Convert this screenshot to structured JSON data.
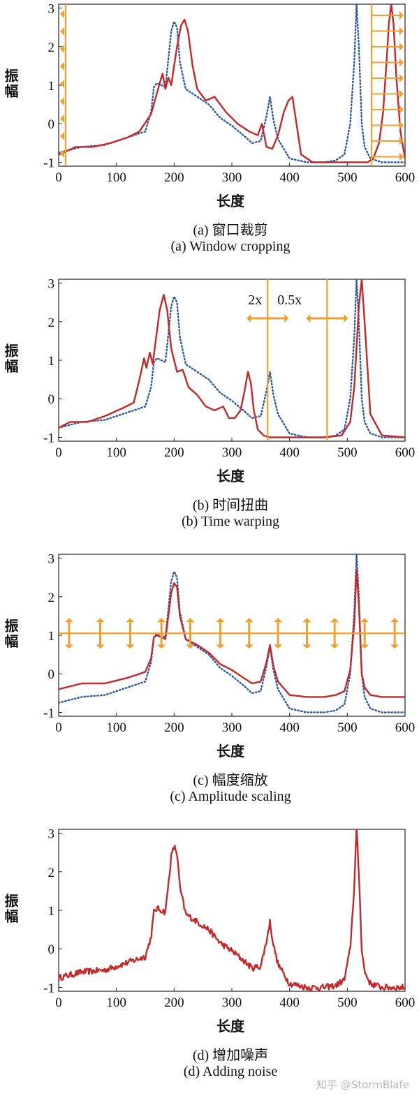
{
  "panels": [
    {
      "caption_letter": "(a)",
      "caption_zh": "窗口裁剪",
      "caption_en": "(a) Window cropping"
    },
    {
      "caption_letter": "(b)",
      "caption_zh": "时间扭曲",
      "caption_en": "(b) Time warping",
      "annotation_left": "2x",
      "annotation_right": "0.5x"
    },
    {
      "caption_letter": "(c)",
      "caption_zh": "幅度缩放",
      "caption_en": "(c) Amplitude scaling"
    },
    {
      "caption_letter": "(d)",
      "caption_zh": "增加噪声",
      "caption_en": "(d) Adding noise"
    }
  ],
  "watermark": "知乎 @StormBlafe",
  "colors": {
    "augmented": "#c62828",
    "original": "#2a57a8",
    "marker": "#f0a030"
  },
  "chart_data": [
    {
      "type": "line",
      "xlabel": "长度",
      "ylabel": "振幅",
      "xlim": [
        0,
        600
      ],
      "ylim": [
        -1.1,
        3.1
      ],
      "xticks": [
        0,
        100,
        200,
        300,
        400,
        500,
        600
      ],
      "yticks": [
        -1,
        0,
        1,
        2,
        3
      ],
      "series": [
        {
          "style": "dotted",
          "color": "#2a57a8",
          "x": [
            0,
            40,
            80,
            120,
            150,
            160,
            165,
            170,
            178,
            185,
            195,
            200,
            205,
            210,
            220,
            240,
            260,
            280,
            300,
            320,
            335,
            350,
            360,
            366,
            372,
            380,
            400,
            430,
            460,
            480,
            495,
            505,
            512,
            516,
            520,
            525,
            530,
            540,
            560,
            600
          ],
          "y": [
            -0.75,
            -0.6,
            -0.55,
            -0.35,
            -0.2,
            0.3,
            0.95,
            1.05,
            1.0,
            0.95,
            2.4,
            2.65,
            2.5,
            1.6,
            0.9,
            0.7,
            0.5,
            0.15,
            -0.05,
            -0.3,
            -0.5,
            -0.45,
            0.2,
            0.7,
            0.1,
            -0.4,
            -0.9,
            -1.0,
            -1.0,
            -0.95,
            -0.8,
            0.0,
            1.6,
            3.1,
            2.0,
            0.0,
            -0.6,
            -0.9,
            -1.0,
            -1.0
          ]
        },
        {
          "style": "solid",
          "color": "#c62828",
          "x": [
            0,
            30,
            60,
            90,
            120,
            140,
            160,
            175,
            180,
            185,
            190,
            195,
            200,
            205,
            212,
            218,
            224,
            232,
            240,
            255,
            270,
            290,
            310,
            330,
            345,
            352,
            360,
            370,
            380,
            390,
            398,
            405,
            410,
            420,
            440,
            470,
            500,
            520,
            535,
            545,
            555,
            562,
            568,
            572,
            576,
            580,
            585,
            592,
            600
          ],
          "y": [
            -0.8,
            -0.6,
            -0.6,
            -0.5,
            -0.35,
            -0.2,
            0.25,
            1.05,
            1.3,
            0.9,
            1.2,
            1.0,
            1.5,
            2.0,
            2.55,
            2.7,
            2.4,
            1.5,
            0.9,
            0.6,
            0.7,
            0.3,
            0.0,
            -0.2,
            -0.3,
            0.0,
            -0.6,
            -0.65,
            -0.3,
            0.3,
            0.6,
            0.7,
            0.2,
            -0.8,
            -1.0,
            -1.0,
            -1.0,
            -1.0,
            -1.0,
            -0.9,
            -0.5,
            0.3,
            1.6,
            2.6,
            3.1,
            2.6,
            1.2,
            -0.2,
            -0.9
          ]
        }
      ]
    },
    {
      "type": "line",
      "xlabel": "长度",
      "ylabel": "振幅",
      "xlim": [
        0,
        600
      ],
      "ylim": [
        -1.1,
        3.1
      ],
      "xticks": [
        0,
        100,
        200,
        300,
        400,
        500,
        600
      ],
      "yticks": [
        -1,
        0,
        1,
        2,
        3
      ],
      "markers_x": [
        362,
        465
      ],
      "series": [
        {
          "style": "dotted",
          "color": "#2a57a8",
          "x": [
            0,
            40,
            80,
            120,
            150,
            160,
            165,
            170,
            178,
            185,
            195,
            200,
            205,
            210,
            220,
            240,
            260,
            280,
            300,
            320,
            335,
            350,
            360,
            366,
            372,
            380,
            400,
            430,
            460,
            480,
            495,
            505,
            512,
            516,
            520,
            525,
            530,
            540,
            560,
            600
          ],
          "y": [
            -0.75,
            -0.6,
            -0.55,
            -0.35,
            -0.2,
            0.3,
            0.95,
            1.05,
            1.0,
            0.95,
            2.4,
            2.65,
            2.5,
            1.6,
            0.9,
            0.7,
            0.5,
            0.15,
            -0.05,
            -0.3,
            -0.5,
            -0.45,
            0.2,
            0.7,
            0.1,
            -0.4,
            -0.9,
            -1.0,
            -1.0,
            -0.95,
            -0.8,
            0.0,
            1.6,
            3.1,
            2.0,
            0.0,
            -0.6,
            -0.9,
            -1.0,
            -1.0
          ]
        },
        {
          "style": "solid",
          "color": "#c62828",
          "x": [
            0,
            20,
            50,
            80,
            110,
            130,
            140,
            148,
            152,
            158,
            163,
            168,
            175,
            182,
            188,
            195,
            205,
            215,
            225,
            240,
            255,
            270,
            285,
            295,
            305,
            315,
            322,
            328,
            333,
            338,
            345,
            355,
            365,
            380,
            420,
            460,
            490,
            505,
            512,
            520,
            525,
            530,
            540,
            560,
            600
          ],
          "y": [
            -0.75,
            -0.6,
            -0.6,
            -0.45,
            -0.25,
            -0.1,
            0.5,
            1.05,
            0.8,
            1.2,
            0.9,
            1.5,
            2.3,
            2.7,
            2.3,
            1.3,
            0.7,
            0.75,
            0.3,
            0.1,
            -0.2,
            -0.3,
            -0.2,
            -0.5,
            -0.5,
            -0.3,
            0.2,
            0.7,
            0.4,
            -0.3,
            -0.8,
            -0.95,
            -1.0,
            -1.0,
            -1.0,
            -1.0,
            -0.95,
            -0.6,
            0.3,
            2.4,
            3.1,
            2.0,
            -0.4,
            -0.95,
            -1.0
          ]
        }
      ]
    },
    {
      "type": "line",
      "xlabel": "长度",
      "ylabel": "振幅",
      "xlim": [
        0,
        600
      ],
      "ylim": [
        -1.1,
        3.1
      ],
      "xticks": [
        0,
        100,
        200,
        300,
        400,
        500,
        600
      ],
      "yticks": [
        -1,
        0,
        1,
        2,
        3
      ],
      "scale_line_y": 1.05,
      "arrow_x": [
        18,
        72,
        124,
        178,
        228,
        280,
        330,
        380,
        430,
        478,
        530,
        582
      ],
      "series": [
        {
          "style": "dotted",
          "color": "#2a57a8",
          "x": [
            0,
            40,
            80,
            120,
            150,
            160,
            165,
            170,
            178,
            185,
            195,
            200,
            205,
            210,
            220,
            240,
            260,
            280,
            300,
            320,
            335,
            350,
            360,
            366,
            372,
            380,
            400,
            430,
            460,
            480,
            495,
            505,
            512,
            516,
            520,
            525,
            530,
            540,
            560,
            600
          ],
          "y": [
            -0.75,
            -0.6,
            -0.55,
            -0.35,
            -0.2,
            0.3,
            0.95,
            1.05,
            1.0,
            0.95,
            2.4,
            2.65,
            2.5,
            1.6,
            0.9,
            0.7,
            0.5,
            0.15,
            -0.05,
            -0.3,
            -0.5,
            -0.45,
            0.2,
            0.7,
            0.1,
            -0.4,
            -0.9,
            -1.0,
            -1.0,
            -0.95,
            -0.8,
            0.0,
            1.6,
            3.1,
            2.0,
            0.0,
            -0.6,
            -0.9,
            -1.0,
            -1.0
          ]
        },
        {
          "style": "solid",
          "color": "#c62828",
          "x": [
            0,
            40,
            80,
            120,
            150,
            160,
            165,
            170,
            178,
            185,
            195,
            200,
            205,
            210,
            220,
            240,
            260,
            280,
            300,
            320,
            335,
            350,
            360,
            366,
            372,
            380,
            400,
            430,
            460,
            480,
            495,
            505,
            512,
            516,
            520,
            525,
            530,
            540,
            560,
            600
          ],
          "y": [
            -0.4,
            -0.25,
            -0.25,
            -0.1,
            0.05,
            0.4,
            0.95,
            1.0,
            0.95,
            0.9,
            2.1,
            2.35,
            2.25,
            1.5,
            0.9,
            0.75,
            0.55,
            0.25,
            0.1,
            -0.1,
            -0.25,
            -0.2,
            0.3,
            0.75,
            0.2,
            -0.2,
            -0.55,
            -0.6,
            -0.6,
            -0.55,
            -0.45,
            0.1,
            1.3,
            2.7,
            1.8,
            0.0,
            -0.35,
            -0.55,
            -0.6,
            -0.6
          ]
        }
      ]
    },
    {
      "type": "line",
      "xlabel": "长度",
      "ylabel": "振幅",
      "xlim": [
        0,
        600
      ],
      "ylim": [
        -1.1,
        3.1
      ],
      "xticks": [
        0,
        100,
        200,
        300,
        400,
        500,
        600
      ],
      "yticks": [
        -1,
        0,
        1,
        2,
        3
      ],
      "series": [
        {
          "style": "noisy",
          "color": "#c62828",
          "x": [
            0,
            40,
            80,
            120,
            150,
            160,
            165,
            170,
            178,
            185,
            195,
            200,
            205,
            210,
            220,
            240,
            260,
            280,
            300,
            320,
            335,
            350,
            360,
            366,
            372,
            380,
            400,
            430,
            460,
            480,
            495,
            505,
            512,
            516,
            520,
            525,
            530,
            540,
            560,
            600
          ],
          "y": [
            -0.75,
            -0.6,
            -0.55,
            -0.35,
            -0.2,
            0.3,
            0.95,
            1.05,
            1.0,
            0.95,
            2.4,
            2.65,
            2.5,
            1.6,
            0.9,
            0.7,
            0.5,
            0.15,
            -0.05,
            -0.3,
            -0.5,
            -0.45,
            0.2,
            0.7,
            0.1,
            -0.4,
            -0.9,
            -1.0,
            -1.0,
            -0.95,
            -0.8,
            0.0,
            1.6,
            3.1,
            2.0,
            0.0,
            -0.6,
            -0.9,
            -1.0,
            -1.0
          ]
        }
      ]
    }
  ]
}
